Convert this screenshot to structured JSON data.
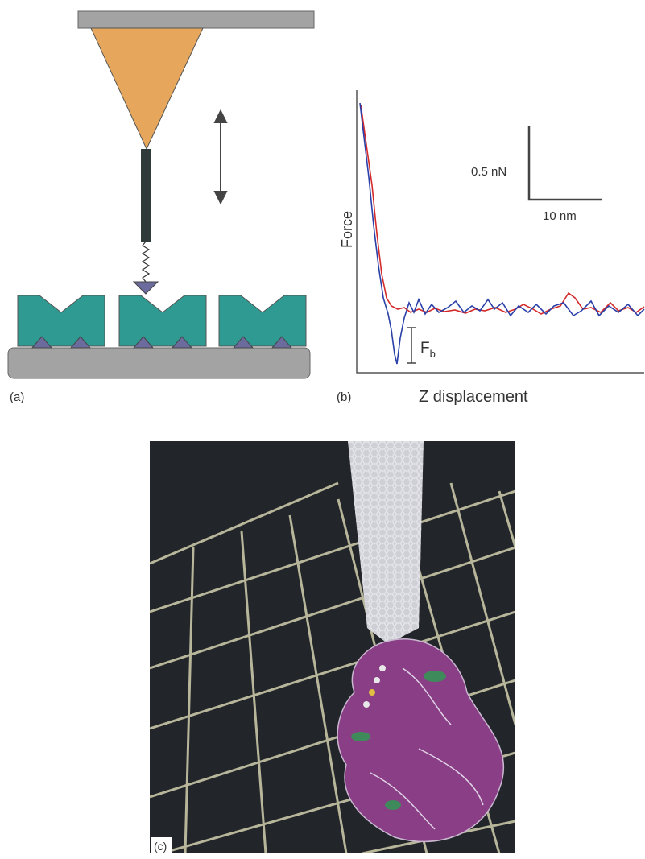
{
  "panel_a": {
    "label": "(a)"
  },
  "panel_b": {
    "label": "(b)",
    "y_axis_label": "Force",
    "x_axis_label": "Z displacement",
    "scale_force": "0.5 nN",
    "scale_distance": "10 nm",
    "rupture_force": {
      "main": "F",
      "sub": "b"
    }
  },
  "panel_c": {
    "label": "(c)"
  }
}
